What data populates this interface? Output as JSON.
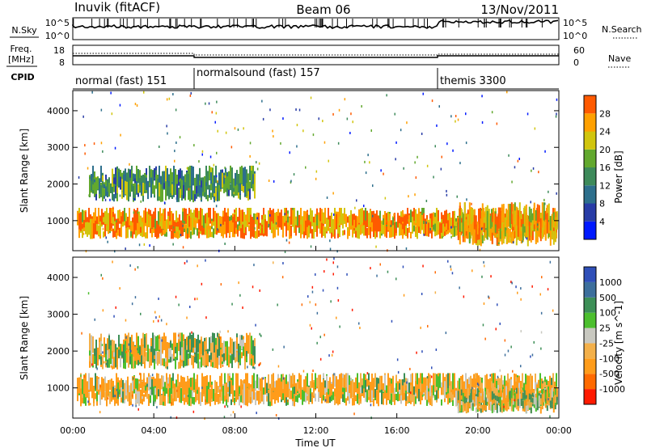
{
  "header": {
    "station": "Inuvik (fitACF)",
    "beam": "Beam 06",
    "date": "13/Nov/2011"
  },
  "strips": {
    "nsky": {
      "label": "N.Sky",
      "ticks": [
        "10^5",
        "10^0"
      ]
    },
    "nsearch": {
      "label": "N.Search",
      "ticks": [
        "10^5",
        "10^0"
      ]
    },
    "freq": {
      "label_top": "Freq.",
      "label_unit": "[MHz]",
      "ticks": [
        "18",
        "8"
      ]
    },
    "nave": {
      "label": "Nave",
      "ticks": [
        "60",
        "0"
      ]
    },
    "cpid": {
      "label": "CPID",
      "modes": [
        {
          "name": "normal (fast) 151",
          "start_h": 0,
          "end_h": 6
        },
        {
          "name": "normalsound (fast) 157",
          "start_h": 6,
          "end_h": 18
        },
        {
          "name": "themis 3300",
          "start_h": 18,
          "end_h": 24
        }
      ]
    }
  },
  "chart_data": [
    {
      "type": "heatmap",
      "title": "",
      "xlabel": "Time UT",
      "ylabel": "Slant Range [km]",
      "x_ticks": [
        "00:00",
        "04:00",
        "08:00",
        "12:00",
        "16:00",
        "20:00",
        "00:00"
      ],
      "xlim_hours": [
        0,
        24
      ],
      "y_ticks": [
        1000,
        2000,
        3000,
        4000
      ],
      "ylim": [
        180,
        4550
      ],
      "colorbar": {
        "label": "Power [dB]",
        "ticks": [
          "28",
          "24",
          "20",
          "16",
          "12",
          "8",
          "4"
        ],
        "levels": [
          0,
          4,
          8,
          12,
          16,
          20,
          24,
          28,
          32
        ],
        "colors": [
          "#0019ff",
          "#283ca6",
          "#2d6f8c",
          "#3d8a5a",
          "#62a82e",
          "#d1c50d",
          "#ffa000",
          "#ff5a00"
        ]
      },
      "echo_bands": [
        {
          "name": "main",
          "start_h": 0.2,
          "end_h": 23.9,
          "range_low_km": 500,
          "range_high_km": 1350,
          "level": 26
        },
        {
          "name": "upper",
          "start_h": 0.8,
          "end_h": 9,
          "range_low_km": 1500,
          "range_high_km": 2500,
          "level": 14
        },
        {
          "name": "late",
          "start_h": 19,
          "end_h": 23.9,
          "range_low_km": 300,
          "range_high_km": 1500,
          "level": 24
        }
      ]
    },
    {
      "type": "heatmap",
      "title": "",
      "xlabel": "Time UT",
      "ylabel": "Slant Range [km]",
      "x_ticks": [
        "00:00",
        "04:00",
        "08:00",
        "12:00",
        "16:00",
        "20:00",
        "00:00"
      ],
      "xlim_hours": [
        0,
        24
      ],
      "y_ticks": [
        1000,
        2000,
        3000,
        4000
      ],
      "ylim": [
        180,
        4550
      ],
      "colorbar": {
        "label": "Velocity [m s^-1]",
        "ticks": [
          "1000",
          "500",
          "100",
          "25",
          "-25",
          "-100",
          "-500",
          "-1000"
        ],
        "levels": [
          -1500,
          -1000,
          -500,
          -100,
          -25,
          25,
          100,
          500,
          1000,
          1500
        ],
        "colors": [
          "#ff1a00",
          "#ff6a00",
          "#ff9c1a",
          "#f3b04a",
          "#c8c8c0",
          "#4cbf2e",
          "#3d8f57",
          "#3d6f9c",
          "#2f4fb8"
        ]
      },
      "echo_bands": [
        {
          "name": "main",
          "start_h": 0.2,
          "end_h": 23.9,
          "range_low_km": 500,
          "range_high_km": 1400,
          "velocity": -100
        },
        {
          "name": "upper",
          "start_h": 0.8,
          "end_h": 9,
          "range_low_km": 1500,
          "range_high_km": 2500,
          "velocity": 0
        },
        {
          "name": "late",
          "start_h": 19,
          "end_h": 23.9,
          "range_low_km": 300,
          "range_high_km": 1000,
          "velocity": 0
        }
      ]
    }
  ]
}
